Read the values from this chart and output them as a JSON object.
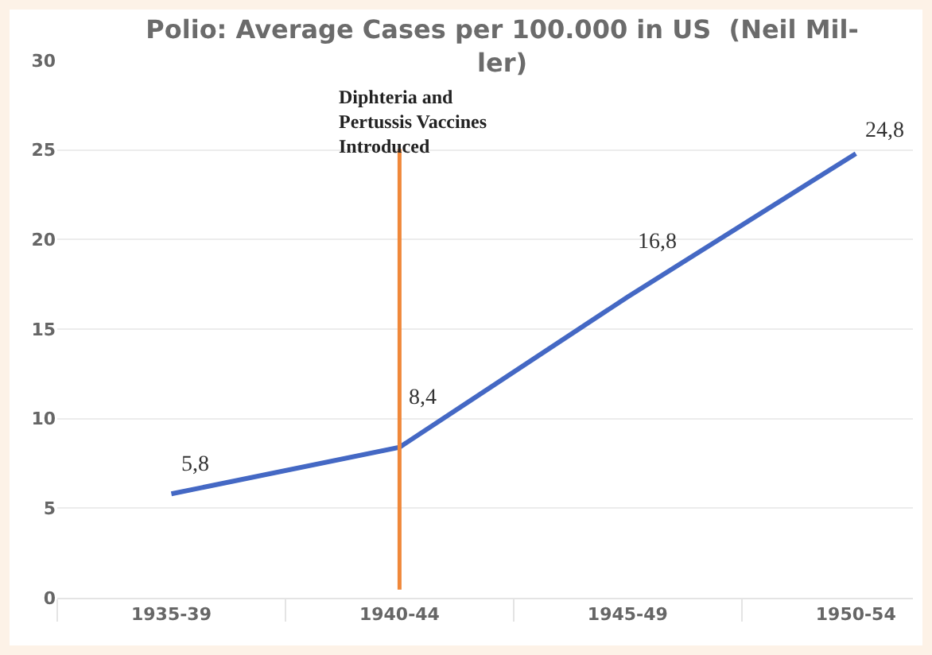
{
  "chart_data": {
    "type": "line",
    "title": "Polio: Average Cases per 100.000 in US  (Neil Mil-\nler)",
    "categories": [
      "1935-39",
      "1940-44",
      "1945-49",
      "1950-54"
    ],
    "values": [
      5.8,
      8.4,
      16.8,
      24.8
    ],
    "color": "#4468c4",
    "value_labels": [
      "5,8",
      "8,4",
      "16,8",
      "24,8"
    ],
    "ylim": [
      0,
      30
    ],
    "yticks": [
      0,
      5,
      10,
      15,
      20,
      25,
      30
    ],
    "grid": "y",
    "marker": "none",
    "line_style": "solid",
    "ref_lines": [
      {
        "axis": "x",
        "value": "1940-44",
        "label": "Diphteria and Pertussis Vaccines Introduced",
        "color": "#f0883a"
      }
    ]
  }
}
